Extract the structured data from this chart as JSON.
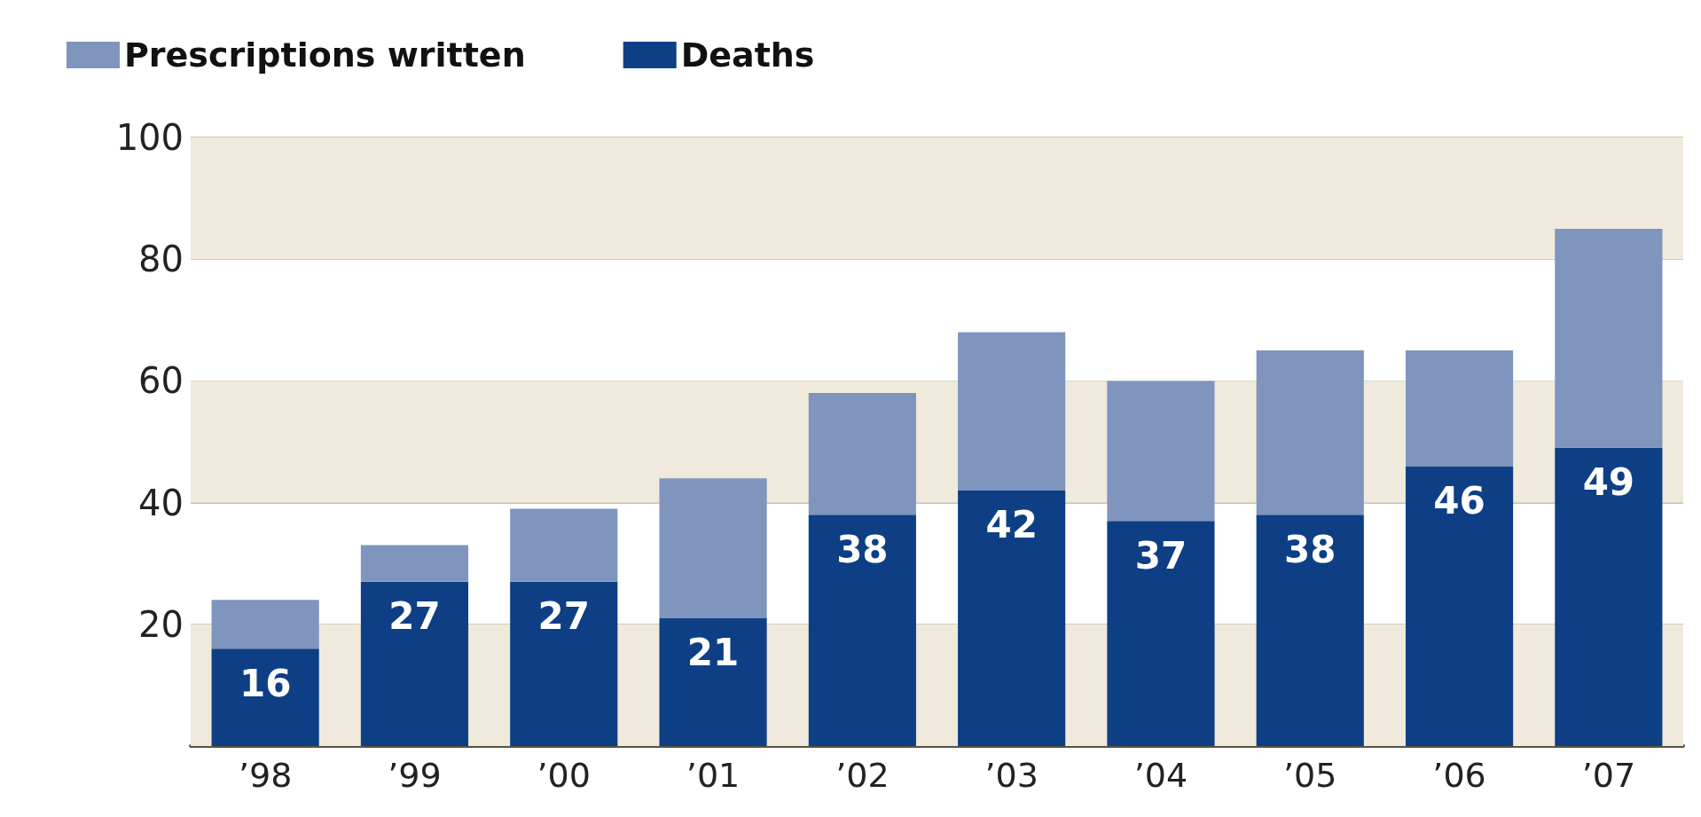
{
  "chart_data": {
    "type": "bar",
    "stacked": true,
    "categories": [
      "’98",
      "’99",
      "’00",
      "’01",
      "’02",
      "’03",
      "’04",
      "’05",
      "’06",
      "’07"
    ],
    "series": [
      {
        "name": "Deaths",
        "color": "#0e3f85",
        "values": [
          16,
          27,
          27,
          21,
          38,
          42,
          37,
          38,
          46,
          49
        ],
        "value_labels": [
          "16",
          "27",
          "27",
          "21",
          "38",
          "42",
          "37",
          "38",
          "46",
          "49"
        ]
      },
      {
        "name": "Prescriptions written",
        "color": "#7f95bd",
        "values": [
          8,
          6,
          12,
          23,
          20,
          26,
          23,
          27,
          19,
          36
        ]
      }
    ],
    "ylim": [
      0,
      100
    ],
    "yticks": [
      {
        "value": 0,
        "label": null
      },
      20,
      40,
      60,
      80,
      100
    ],
    "bands": [
      {
        "axis": "y",
        "from": 0,
        "to": 20,
        "color": "#efeadb"
      },
      {
        "axis": "y",
        "from": 40,
        "to": 60,
        "color": "#efeadb"
      },
      {
        "axis": "y",
        "from": 80,
        "to": 100,
        "color": "#efeadb"
      }
    ],
    "grid": "y",
    "legend": "top left"
  }
}
